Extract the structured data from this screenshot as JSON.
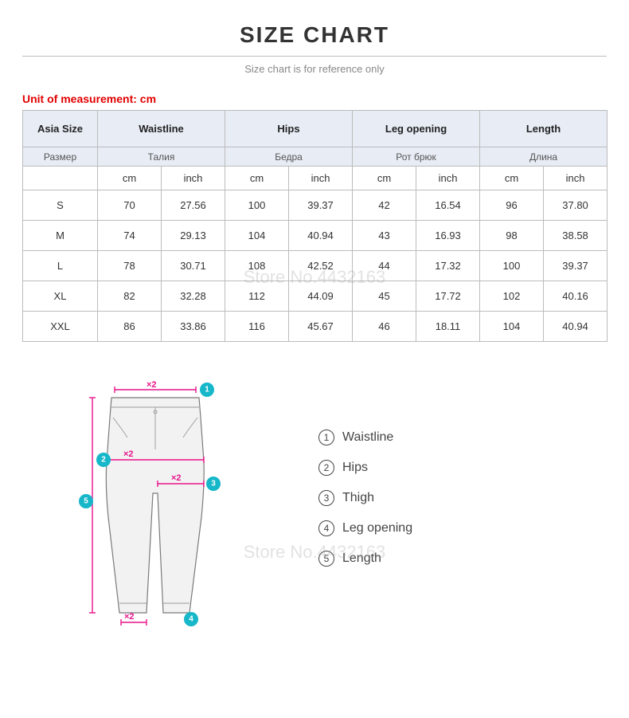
{
  "header": {
    "title": "SIZE CHART",
    "subtitle": "Size chart is for reference only",
    "unit_label": "Unit of measurement: cm",
    "unit_color": "#e20000"
  },
  "watermark": "Store No.4432163",
  "table": {
    "header_bg": "#e7ecf5",
    "border_color": "#bcbcbc",
    "columns_en": [
      "Asia Size",
      "Waistline",
      "Hips",
      "Leg opening",
      "Length"
    ],
    "columns_ru": [
      "Размер",
      "Талия",
      "Бедра",
      "Рот брюк",
      "Длина"
    ],
    "unit_headers": [
      "",
      "cm",
      "inch",
      "cm",
      "inch",
      "cm",
      "inch",
      "cm",
      "inch"
    ],
    "rows": [
      {
        "size": "S",
        "cells": [
          "70",
          "27.56",
          "100",
          "39.37",
          "42",
          "16.54",
          "96",
          "37.80"
        ]
      },
      {
        "size": "M",
        "cells": [
          "74",
          "29.13",
          "104",
          "40.94",
          "43",
          "16.93",
          "98",
          "38.58"
        ]
      },
      {
        "size": "L",
        "cells": [
          "78",
          "30.71",
          "108",
          "42.52",
          "44",
          "17.32",
          "100",
          "39.37"
        ]
      },
      {
        "size": "XL",
        "cells": [
          "82",
          "32.28",
          "112",
          "44.09",
          "45",
          "17.72",
          "102",
          "40.16"
        ]
      },
      {
        "size": "XXL",
        "cells": [
          "86",
          "33.86",
          "116",
          "45.67",
          "46",
          "18.11",
          "104",
          "40.94"
        ]
      }
    ]
  },
  "legend": {
    "items": [
      {
        "num": "1",
        "label": "Waistline"
      },
      {
        "num": "2",
        "label": "Hips"
      },
      {
        "num": "3",
        "label": "Thigh"
      },
      {
        "num": "4",
        "label": "Leg opening"
      },
      {
        "num": "5",
        "label": "Length"
      }
    ]
  },
  "diagram": {
    "badge_color": "#16b7c9",
    "measure_color": "#e9128a",
    "pants_fill": "#f2f2f2",
    "pants_stroke": "#7a7a7a",
    "x2_label": "×2"
  }
}
